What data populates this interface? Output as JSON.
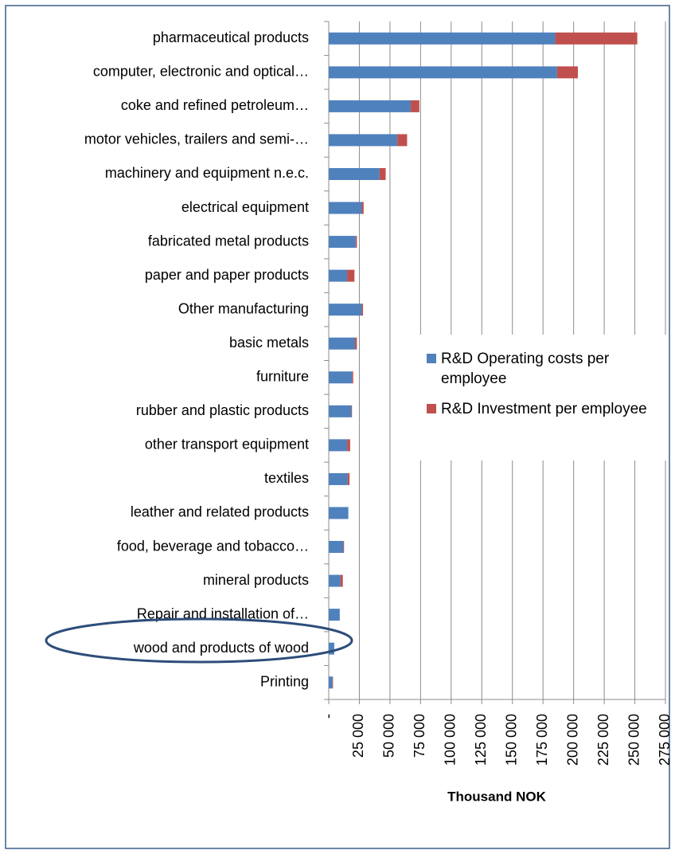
{
  "chart_data": {
    "type": "stacked_barh",
    "x_label": "Thousand NOK",
    "categories": [
      "pharmaceutical products",
      "computer, electronic and optical…",
      "coke and refined petroleum…",
      "motor vehicles, trailers and semi-…",
      "machinery and equipment n.e.c.",
      "electrical equipment",
      "fabricated metal products",
      "paper and paper products",
      "Other manufacturing",
      "basic metals",
      "furniture",
      "rubber and plastic products",
      "other transport equipment",
      "textiles",
      "leather and related products",
      "food, beverage and tobacco…",
      "mineral products",
      "Repair and installation of…",
      "wood and products of wood",
      "Printing"
    ],
    "series": [
      {
        "name": "R&D Operating costs per employee",
        "color": "#4f81bd",
        "values": [
          185000,
          186500,
          67000,
          56000,
          41500,
          27000,
          22000,
          15000,
          27000,
          21500,
          19000,
          18500,
          15000,
          15500,
          16000,
          12000,
          9500,
          9000,
          4500,
          3000
        ]
      },
      {
        "name": "R&D Investment per employee",
        "color": "#c0504d",
        "values": [
          67000,
          17000,
          7000,
          8000,
          5000,
          1500,
          1000,
          6000,
          1000,
          1500,
          1000,
          500,
          2500,
          1500,
          0,
          500,
          2000,
          0,
          0,
          500
        ]
      }
    ],
    "xlim": [
      0,
      275000
    ],
    "xticks": [
      {
        "value": 0,
        "label": "-"
      },
      {
        "value": 25000,
        "label": "25 000"
      },
      {
        "value": 50000,
        "label": "50 000"
      },
      {
        "value": 75000,
        "label": "75 000"
      },
      {
        "value": 100000,
        "label": "100 000"
      },
      {
        "value": 125000,
        "label": "125 000"
      },
      {
        "value": 150000,
        "label": "150 000"
      },
      {
        "value": 175000,
        "label": "175 000"
      },
      {
        "value": 200000,
        "label": "200 000"
      },
      {
        "value": 225000,
        "label": "225 000"
      },
      {
        "value": 250000,
        "label": "250 000"
      },
      {
        "value": 275000,
        "label": "275 000"
      }
    ],
    "grid": true
  }
}
